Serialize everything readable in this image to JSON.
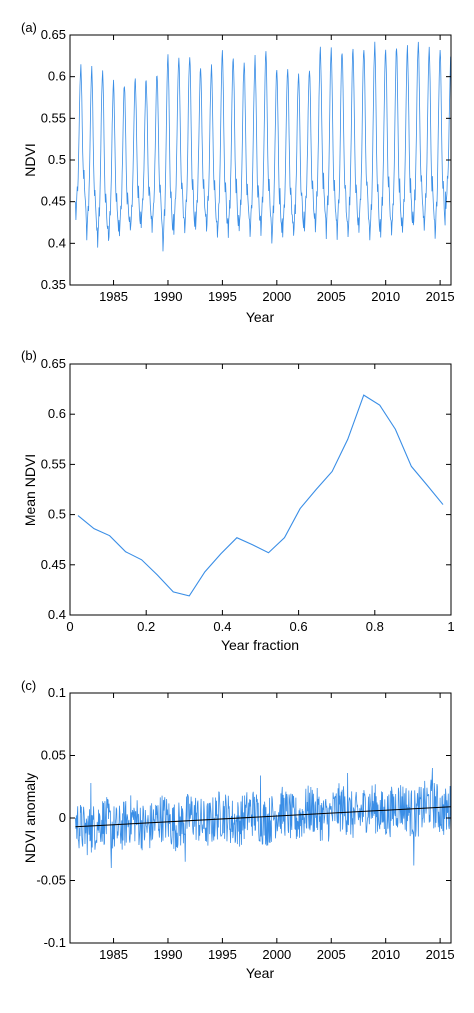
{
  "chart_data": [
    {
      "panel_label": "(a)",
      "type": "line",
      "xlabel": "Year",
      "ylabel": "NDVI",
      "xlim": [
        1981,
        2016
      ],
      "ylim": [
        0.35,
        0.65
      ],
      "xticks": [
        1985,
        1990,
        1995,
        2000,
        2005,
        2010,
        2015
      ],
      "yticks": [
        0.35,
        0.4,
        0.45,
        0.5,
        0.55,
        0.6,
        0.65
      ],
      "grid": false,
      "series_color": "#3a8ee6",
      "series": [
        {
          "x_start": 1981.5,
          "points_per_year": 24,
          "annual_peaks": [
            0.612,
            0.608,
            0.61,
            0.592,
            0.59,
            0.596,
            0.597,
            0.603,
            0.626,
            0.621,
            0.625,
            0.61,
            0.61,
            0.627,
            0.623,
            0.617,
            0.622,
            0.628,
            0.61,
            0.607,
            0.605,
            0.609,
            0.633,
            0.633,
            0.631,
            0.632,
            0.636,
            0.638,
            0.635,
            0.636,
            0.634,
            0.642,
            0.636,
            0.634,
            0.628
          ],
          "annual_minima": [
            0.43,
            0.405,
            0.399,
            0.401,
            0.408,
            0.412,
            0.418,
            0.413,
            0.395,
            0.415,
            0.409,
            0.418,
            0.415,
            0.407,
            0.41,
            0.414,
            0.408,
            0.413,
            0.4,
            0.41,
            0.406,
            0.418,
            0.416,
            0.41,
            0.408,
            0.406,
            0.411,
            0.401,
            0.409,
            0.407,
            0.411,
            0.418,
            0.413,
            0.408,
            0.442
          ]
        }
      ]
    },
    {
      "panel_label": "(b)",
      "type": "line",
      "xlabel": "Year fraction",
      "ylabel": "Mean NDVI",
      "xlim": [
        0,
        1
      ],
      "ylim": [
        0.4,
        0.65
      ],
      "xticks": [
        0,
        0.2,
        0.4,
        0.6,
        0.8,
        1
      ],
      "yticks": [
        0.4,
        0.45,
        0.5,
        0.55,
        0.6,
        0.65
      ],
      "xtick_labels": [
        "0",
        "0.2",
        "0.4",
        "0.6",
        "0.8",
        "1"
      ],
      "grid": false,
      "series_color": "#3a8ee6",
      "series": [
        {
          "x": [
            0.021,
            0.063,
            0.104,
            0.146,
            0.188,
            0.229,
            0.271,
            0.313,
            0.354,
            0.396,
            0.438,
            0.479,
            0.521,
            0.563,
            0.604,
            0.646,
            0.688,
            0.729,
            0.771,
            0.813,
            0.854,
            0.896,
            0.938,
            0.979
          ],
          "y": [
            0.499,
            0.486,
            0.479,
            0.463,
            0.455,
            0.44,
            0.423,
            0.419,
            0.443,
            0.461,
            0.477,
            0.47,
            0.462,
            0.477,
            0.506,
            0.525,
            0.543,
            0.575,
            0.619,
            0.609,
            0.585,
            0.548,
            0.529,
            0.51
          ]
        }
      ]
    },
    {
      "panel_label": "(c)",
      "type": "line",
      "xlabel": "Year",
      "ylabel": "NDVI anomaly",
      "xlim": [
        1981,
        2016
      ],
      "ylim": [
        -0.1,
        0.1
      ],
      "xticks": [
        1985,
        1990,
        1995,
        2000,
        2005,
        2010,
        2015
      ],
      "yticks": [
        -0.1,
        -0.05,
        0,
        0.05,
        0.1
      ],
      "ytick_labels": [
        "-0.1",
        "-0.05",
        "0",
        "0.05",
        "0.1"
      ],
      "grid": false,
      "series_color": "#3a8ee6",
      "trend_color": "#000000",
      "series": [
        {
          "x_start": 1981.5,
          "points_per_year": 24,
          "anomaly_range": [
            -0.04,
            0.04
          ],
          "noteworthy": [
            {
              "x": 1982.9,
              "y": 0.028
            },
            {
              "x": 1984.8,
              "y": -0.04
            },
            {
              "x": 1991.6,
              "y": -0.035
            },
            {
              "x": 1998.5,
              "y": 0.034
            },
            {
              "x": 2006.5,
              "y": 0.036
            },
            {
              "x": 2012.6,
              "y": -0.038
            },
            {
              "x": 2014.3,
              "y": 0.04
            }
          ]
        }
      ],
      "trend": {
        "x": [
          1981.5,
          2016
        ],
        "y": [
          -0.007,
          0.009
        ]
      }
    }
  ]
}
